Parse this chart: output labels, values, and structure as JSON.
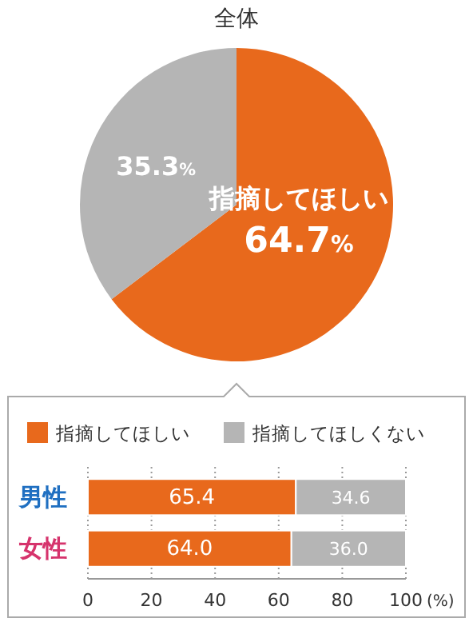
{
  "chart_data": [
    {
      "type": "pie",
      "title": "全体",
      "categories": [
        "指摘してほしい",
        null
      ],
      "values": [
        64.7,
        35.3
      ],
      "colors": [
        "#e8691c",
        "#b5b5b5"
      ],
      "value_labels": [
        "64.7%",
        "35.3%"
      ]
    },
    {
      "type": "bar",
      "orientation": "horizontal",
      "stacked": true,
      "categories": [
        "男性",
        "女性"
      ],
      "series": [
        {
          "name": "指摘してほしい",
          "color": "#e8691c",
          "values": [
            65.4,
            64.0
          ],
          "value_labels": [
            "65.4",
            "64.0"
          ]
        },
        {
          "name": "指摘してほしくない",
          "color": "#b5b5b5",
          "values": [
            34.6,
            36.0
          ],
          "value_labels": [
            "34.6",
            "36.0"
          ]
        }
      ],
      "xlim": [
        0,
        100
      ],
      "xticks": [
        0,
        20,
        40,
        60,
        80,
        100
      ],
      "xlabel": "(%)",
      "grid": "x",
      "legend": "top"
    }
  ]
}
